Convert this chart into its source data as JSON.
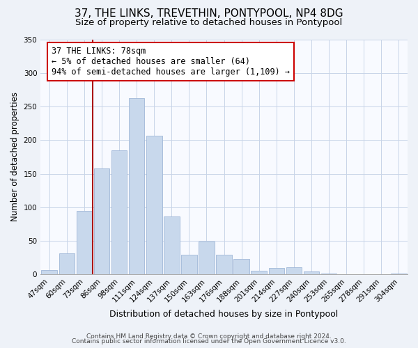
{
  "title": "37, THE LINKS, TREVETHIN, PONTYPOOL, NP4 8DG",
  "subtitle": "Size of property relative to detached houses in Pontypool",
  "xlabel": "Distribution of detached houses by size in Pontypool",
  "ylabel": "Number of detached properties",
  "bar_labels": [
    "47sqm",
    "60sqm",
    "73sqm",
    "86sqm",
    "98sqm",
    "111sqm",
    "124sqm",
    "137sqm",
    "150sqm",
    "163sqm",
    "176sqm",
    "188sqm",
    "201sqm",
    "214sqm",
    "227sqm",
    "240sqm",
    "253sqm",
    "265sqm",
    "278sqm",
    "291sqm",
    "304sqm"
  ],
  "bar_values": [
    7,
    32,
    95,
    158,
    185,
    262,
    207,
    86,
    29,
    49,
    29,
    23,
    6,
    10,
    11,
    5,
    2,
    0,
    0,
    0,
    2
  ],
  "bar_color": "#c8d8ec",
  "bar_edge_color": "#a0b8d8",
  "highlight_line_color": "#aa0000",
  "annotation_title": "37 THE LINKS: 78sqm",
  "annotation_line1": "← 5% of detached houses are smaller (64)",
  "annotation_line2": "94% of semi-detached houses are larger (1,109) →",
  "annotation_box_color": "#ffffff",
  "annotation_box_edge": "#cc0000",
  "ylim": [
    0,
    350
  ],
  "yticks": [
    0,
    50,
    100,
    150,
    200,
    250,
    300,
    350
  ],
  "footer1": "Contains HM Land Registry data © Crown copyright and database right 2024.",
  "footer2": "Contains public sector information licensed under the Open Government Licence v3.0.",
  "bg_color": "#eef2f8",
  "plot_bg_color": "#f8faff",
  "title_fontsize": 11,
  "subtitle_fontsize": 9.5,
  "tick_fontsize": 7.5,
  "ylabel_fontsize": 8.5,
  "xlabel_fontsize": 9,
  "footer_fontsize": 6.5
}
